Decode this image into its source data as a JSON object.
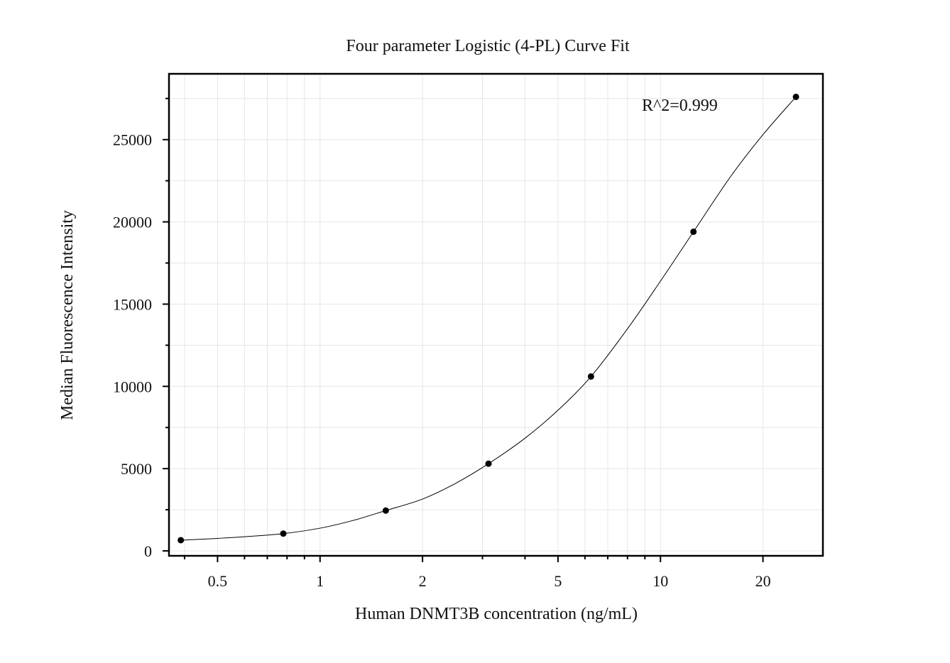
{
  "chart_data": {
    "type": "scatter",
    "title": "Four parameter Logistic (4-PL) Curve Fit",
    "xlabel": "Human DNMT3B concentration (ng/mL)",
    "ylabel": "Median Fluorescence Intensity",
    "x_scale": "log",
    "xlim": [
      0.36,
      30
    ],
    "ylim": [
      -300,
      29000
    ],
    "x_ticks": [
      0.5,
      1,
      2,
      5,
      10,
      20
    ],
    "x_tick_labels": [
      "0.5",
      "1",
      "2",
      "5",
      "10",
      "20"
    ],
    "y_ticks": [
      0,
      5000,
      10000,
      15000,
      20000,
      25000
    ],
    "y_tick_labels": [
      "0",
      "5000",
      "10000",
      "15000",
      "20000",
      "25000"
    ],
    "y_minor_ticks": [
      2500,
      7500,
      12500,
      17500,
      22500,
      27500
    ],
    "grid": true,
    "series": [
      {
        "points": [
          {
            "x": 0.39,
            "y": 650
          },
          {
            "x": 0.78,
            "y": 1050
          },
          {
            "x": 1.56,
            "y": 2450
          },
          {
            "x": 3.125,
            "y": 5300
          },
          {
            "x": 6.25,
            "y": 10600
          },
          {
            "x": 12.5,
            "y": 19400
          },
          {
            "x": 25,
            "y": 27600
          }
        ],
        "fit_curve": [
          {
            "x": 0.39,
            "y": 650
          },
          {
            "x": 0.5,
            "y": 760
          },
          {
            "x": 0.6,
            "y": 860
          },
          {
            "x": 0.78,
            "y": 1050
          },
          {
            "x": 1.0,
            "y": 1380
          },
          {
            "x": 1.25,
            "y": 1850
          },
          {
            "x": 1.56,
            "y": 2450
          },
          {
            "x": 2.0,
            "y": 3150
          },
          {
            "x": 2.5,
            "y": 4100
          },
          {
            "x": 3.125,
            "y": 5300
          },
          {
            "x": 4.0,
            "y": 6850
          },
          {
            "x": 5.0,
            "y": 8550
          },
          {
            "x": 6.25,
            "y": 10600
          },
          {
            "x": 8.0,
            "y": 13500
          },
          {
            "x": 10.0,
            "y": 16400
          },
          {
            "x": 12.5,
            "y": 19400
          },
          {
            "x": 16.0,
            "y": 22700
          },
          {
            "x": 20.0,
            "y": 25300
          },
          {
            "x": 25.0,
            "y": 27600
          }
        ]
      }
    ],
    "annotations": [
      {
        "text": "R^2=0.999"
      }
    ]
  }
}
